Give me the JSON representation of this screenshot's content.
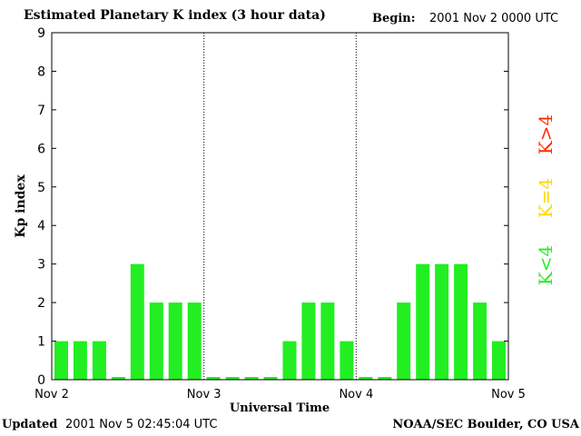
{
  "header": {
    "title": "Estimated Planetary K index (3 hour data)",
    "begin_label": "Begin:",
    "begin_value": "2001 Nov 2 0000 UTC"
  },
  "footer": {
    "updated_label": "Updated",
    "updated_value": "2001 Nov  5 02:45:04 UTC",
    "credit": "NOAA/SEC Boulder, CO USA"
  },
  "legend": [
    {
      "label": "K>4",
      "color": "#ff2a00"
    },
    {
      "label": "K=4",
      "color": "#ffd700"
    },
    {
      "label": "K<4",
      "color": "#22ee22"
    }
  ],
  "chart_data": {
    "type": "bar",
    "title": "Estimated Planetary K index (3 hour data)",
    "xlabel": "Universal Time",
    "ylabel": "Kp index",
    "ylim": [
      0,
      9
    ],
    "yticks": [
      0,
      1,
      2,
      3,
      4,
      5,
      6,
      7,
      8,
      9
    ],
    "xticks": [
      "Nov 2",
      "Nov 3",
      "Nov 4",
      "Nov 5"
    ],
    "intervals_per_day": 8,
    "values": [
      1,
      1,
      1,
      0,
      3,
      2,
      2,
      2,
      0,
      0,
      0,
      0,
      1,
      2,
      2,
      1,
      0,
      0,
      2,
      3,
      3,
      3,
      2,
      1
    ],
    "bar_color": "#22ee22",
    "day_separators": "dotted"
  }
}
